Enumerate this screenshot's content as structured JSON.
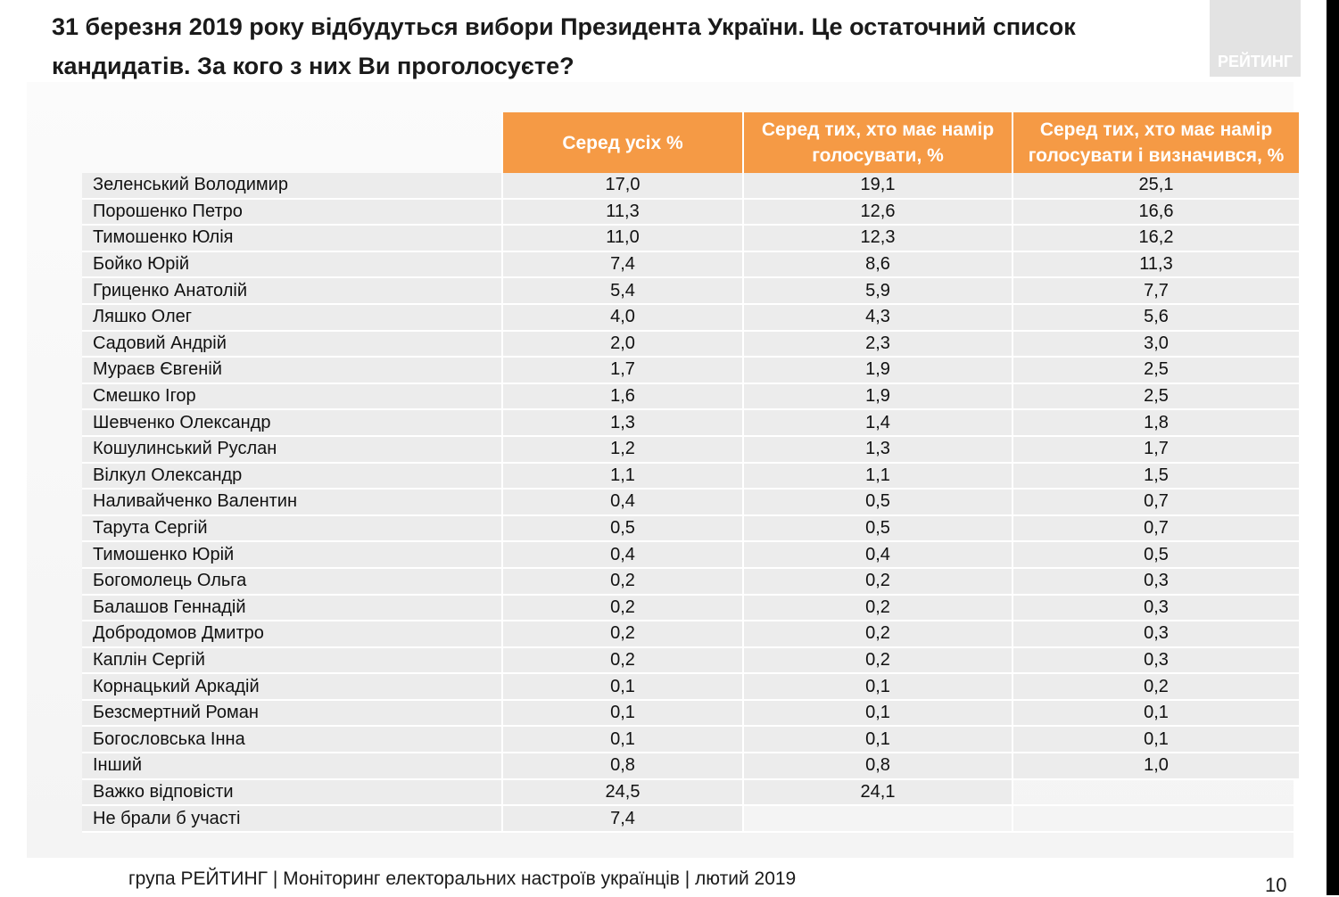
{
  "title": "31 березня 2019 року відбудуться вибори Президента України. Це остаточний список кандидатів. За кого з них Ви проголосуєте?",
  "logo_text": "РЕЙТИНГ",
  "footer": "група РЕЙТИНГ |  Моніторинг електоральних настроїв українців | лютий  2019",
  "page_number": "10",
  "colors": {
    "header": "#f59a45",
    "row": "#ececec"
  },
  "chart_data": {
    "type": "table",
    "columns": [
      "",
      "Серед усіх %",
      "Серед тих, хто має намір голосувати, %",
      "Серед тих, хто має намір голосувати і визначився, %"
    ],
    "rows": [
      [
        "Зеленський Володимир",
        "17,0",
        "19,1",
        "25,1"
      ],
      [
        "Порошенко Петро",
        "11,3",
        "12,6",
        "16,6"
      ],
      [
        "Тимошенко Юлія",
        "11,0",
        "12,3",
        "16,2"
      ],
      [
        "Бойко Юрій",
        "7,4",
        "8,6",
        "11,3"
      ],
      [
        "Гриценко Анатолій",
        "5,4",
        "5,9",
        "7,7"
      ],
      [
        "Ляшко Олег",
        "4,0",
        "4,3",
        "5,6"
      ],
      [
        "Садовий Андрій",
        "2,0",
        "2,3",
        "3,0"
      ],
      [
        "Мураєв Євгеній",
        "1,7",
        "1,9",
        "2,5"
      ],
      [
        "Смешко Ігор",
        "1,6",
        "1,9",
        "2,5"
      ],
      [
        "Шевченко Олександр",
        "1,3",
        "1,4",
        "1,8"
      ],
      [
        "Кошулинський Руслан",
        "1,2",
        "1,3",
        "1,7"
      ],
      [
        "Вілкул Олександр",
        "1,1",
        "1,1",
        "1,5"
      ],
      [
        "Наливайченко Валентин",
        "0,4",
        "0,5",
        "0,7"
      ],
      [
        "Тарута Сергій",
        "0,5",
        "0,5",
        "0,7"
      ],
      [
        "Тимошенко Юрій",
        "0,4",
        "0,4",
        "0,5"
      ],
      [
        "Богомолець Ольга",
        "0,2",
        "0,2",
        "0,3"
      ],
      [
        "Балашов Геннадій",
        "0,2",
        "0,2",
        "0,3"
      ],
      [
        "Добродомов Дмитро",
        "0,2",
        "0,2",
        "0,3"
      ],
      [
        "Каплін Сергій",
        "0,2",
        "0,2",
        "0,3"
      ],
      [
        "Корнацький Аркадій",
        "0,1",
        "0,1",
        "0,2"
      ],
      [
        "Безсмертний Роман",
        "0,1",
        "0,1",
        "0,1"
      ],
      [
        "Богословська Інна",
        "0,1",
        "0,1",
        "0,1"
      ],
      [
        "Інший",
        "0,8",
        "0,8",
        "1,0"
      ],
      [
        "Важко відповісти",
        "24,5",
        "24,1",
        null
      ],
      [
        "Не брали б участі",
        "7,4",
        null,
        null
      ]
    ]
  }
}
